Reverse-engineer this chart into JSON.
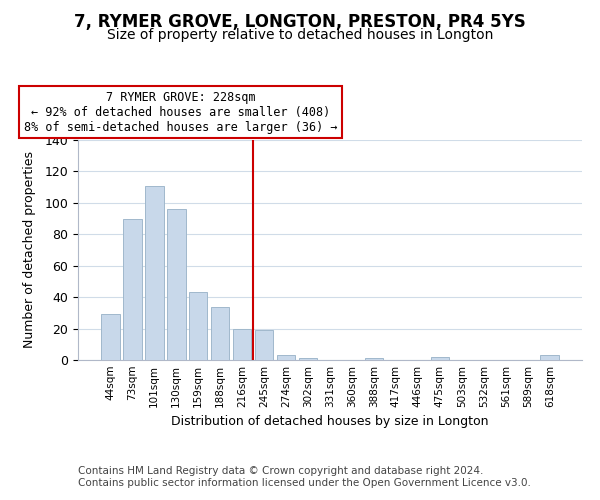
{
  "title": "7, RYMER GROVE, LONGTON, PRESTON, PR4 5YS",
  "subtitle": "Size of property relative to detached houses in Longton",
  "xlabel": "Distribution of detached houses by size in Longton",
  "ylabel": "Number of detached properties",
  "bar_labels": [
    "44sqm",
    "73sqm",
    "101sqm",
    "130sqm",
    "159sqm",
    "188sqm",
    "216sqm",
    "245sqm",
    "274sqm",
    "302sqm",
    "331sqm",
    "360sqm",
    "388sqm",
    "417sqm",
    "446sqm",
    "475sqm",
    "503sqm",
    "532sqm",
    "561sqm",
    "589sqm",
    "618sqm"
  ],
  "bar_values": [
    29,
    90,
    111,
    96,
    43,
    34,
    20,
    19,
    3,
    1,
    0,
    0,
    1,
    0,
    0,
    2,
    0,
    0,
    0,
    0,
    3
  ],
  "bar_color": "#c8d8ea",
  "bar_edge_color": "#a0b8cc",
  "vline_color": "#cc0000",
  "annotation_line1": "7 RYMER GROVE: 228sqm",
  "annotation_line2": "← 92% of detached houses are smaller (408)",
  "annotation_line3": "8% of semi-detached houses are larger (36) →",
  "annotation_box_color": "#ffffff",
  "annotation_box_edge_color": "#cc0000",
  "ylim": [
    0,
    140
  ],
  "yticks": [
    0,
    20,
    40,
    60,
    80,
    100,
    120,
    140
  ],
  "footer1": "Contains HM Land Registry data © Crown copyright and database right 2024.",
  "footer2": "Contains public sector information licensed under the Open Government Licence v3.0.",
  "bg_color": "#ffffff",
  "grid_color": "#d0dce8",
  "title_fontsize": 12,
  "subtitle_fontsize": 10,
  "footer_fontsize": 7.5
}
